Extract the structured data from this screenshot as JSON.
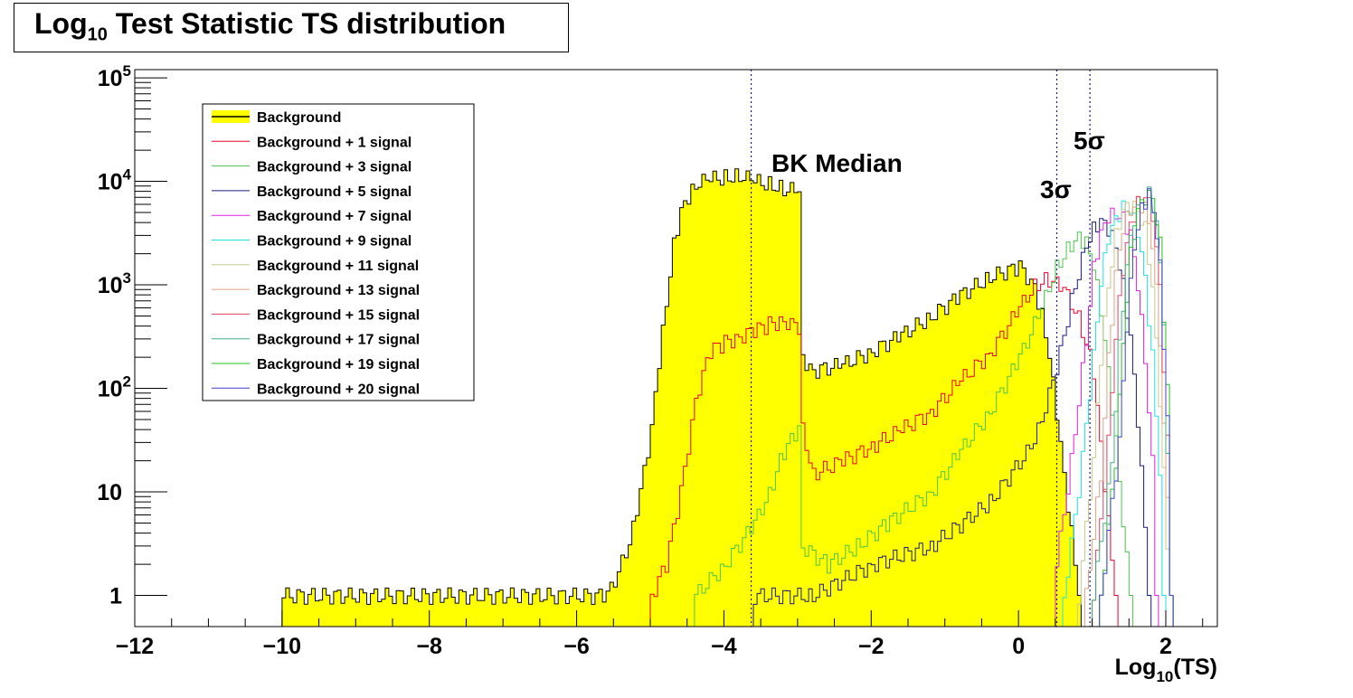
{
  "chart_data": {
    "type": "histogram",
    "title": {
      "main": "Log",
      "sub": "10",
      "rest": " Test Statistic TS distribution"
    },
    "xlabel": {
      "main": "Log",
      "sub": "10",
      "rest": "(TS)"
    },
    "ylabel": "",
    "xlim": [
      -12,
      2.7
    ],
    "ylim": [
      0.5,
      120000
    ],
    "y_scale": "log",
    "x_ticks": [
      {
        "value": -12,
        "label": "−12"
      },
      {
        "value": -10,
        "label": "−10"
      },
      {
        "value": -8,
        "label": "−8"
      },
      {
        "value": -6,
        "label": "−6"
      },
      {
        "value": -4,
        "label": "−4"
      },
      {
        "value": -2,
        "label": "−2"
      },
      {
        "value": 0,
        "label": "0"
      },
      {
        "value": 2,
        "label": "2"
      }
    ],
    "y_ticks": [
      {
        "value": 1,
        "label": "1"
      },
      {
        "value": 10,
        "label": "10"
      },
      {
        "value": 100,
        "label": "10",
        "exp": "2"
      },
      {
        "value": 1000,
        "label": "10",
        "exp": "3"
      },
      {
        "value": 10000,
        "label": "10",
        "exp": "4"
      },
      {
        "value": 100000,
        "label": "10",
        "exp": "5"
      }
    ],
    "legend_position": "top-left",
    "series": [
      {
        "name": "Background",
        "color": "#000000",
        "fill": "#ffff00",
        "filled": true,
        "points": [
          [
            -10.0,
            1
          ],
          [
            -5.6,
            1
          ],
          [
            -5.3,
            3
          ],
          [
            -5.15,
            10
          ],
          [
            -5.0,
            40
          ],
          [
            -4.9,
            180
          ],
          [
            -4.8,
            700
          ],
          [
            -4.7,
            2500
          ],
          [
            -4.6,
            5000
          ],
          [
            -4.5,
            7000
          ],
          [
            -4.4,
            9500
          ],
          [
            -4.2,
            10500
          ],
          [
            -4.0,
            11000
          ],
          [
            -3.8,
            11500
          ],
          [
            -3.6,
            10000
          ],
          [
            -3.4,
            9500
          ],
          [
            -3.2,
            8500
          ],
          [
            -3.0,
            8000
          ],
          [
            -2.95,
            200
          ],
          [
            -2.8,
            150
          ],
          [
            -2.4,
            170
          ],
          [
            -2.0,
            230
          ],
          [
            -1.6,
            330
          ],
          [
            -1.2,
            500
          ],
          [
            -0.8,
            800
          ],
          [
            -0.4,
            1200
          ],
          [
            0.0,
            1500
          ],
          [
            0.2,
            1000
          ],
          [
            0.3,
            500
          ],
          [
            0.4,
            200
          ],
          [
            0.5,
            60
          ],
          [
            0.6,
            15
          ],
          [
            0.7,
            4
          ],
          [
            0.8,
            1
          ]
        ]
      },
      {
        "name": "Background + 1 signal",
        "color": "#e8002a",
        "points": [
          [
            -5.0,
            1
          ],
          [
            -4.8,
            2
          ],
          [
            -4.6,
            10
          ],
          [
            -4.4,
            80
          ],
          [
            -4.2,
            230
          ],
          [
            -4.0,
            280
          ],
          [
            -3.8,
            320
          ],
          [
            -3.6,
            360
          ],
          [
            -3.4,
            420
          ],
          [
            -3.2,
            460
          ],
          [
            -3.0,
            380
          ],
          [
            -2.95,
            40
          ],
          [
            -2.8,
            15
          ],
          [
            -2.4,
            20
          ],
          [
            -2.0,
            28
          ],
          [
            -1.6,
            40
          ],
          [
            -1.2,
            60
          ],
          [
            -0.8,
            120
          ],
          [
            -0.4,
            220
          ],
          [
            0.0,
            600
          ],
          [
            0.2,
            1000
          ],
          [
            0.4,
            1150
          ],
          [
            0.6,
            900
          ],
          [
            0.8,
            500
          ],
          [
            1.0,
            150
          ],
          [
            1.1,
            30
          ],
          [
            1.2,
            5
          ],
          [
            1.3,
            1
          ]
        ]
      },
      {
        "name": "Background + 3 signal",
        "color": "#4bc44b",
        "points": [
          [
            -4.4,
            1
          ],
          [
            -4.0,
            2
          ],
          [
            -3.6,
            5
          ],
          [
            -3.4,
            10
          ],
          [
            -3.2,
            25
          ],
          [
            -3.0,
            40
          ],
          [
            -2.95,
            3
          ],
          [
            -2.6,
            2
          ],
          [
            -2.2,
            3
          ],
          [
            -1.8,
            5
          ],
          [
            -1.2,
            10
          ],
          [
            -0.8,
            25
          ],
          [
            -0.4,
            60
          ],
          [
            0.0,
            200
          ],
          [
            0.3,
            600
          ],
          [
            0.5,
            1500
          ],
          [
            0.7,
            2500
          ],
          [
            0.8,
            3000
          ],
          [
            0.9,
            2500
          ],
          [
            1.0,
            1500
          ],
          [
            1.1,
            600
          ],
          [
            1.2,
            150
          ],
          [
            1.3,
            30
          ],
          [
            1.4,
            5
          ],
          [
            1.5,
            1
          ]
        ]
      },
      {
        "name": "Background + 5 signal",
        "color": "#1a1a7a",
        "points": [
          [
            -3.6,
            1
          ],
          [
            -2.8,
            1
          ],
          [
            -2.0,
            2
          ],
          [
            -1.2,
            3
          ],
          [
            -0.4,
            8
          ],
          [
            0.2,
            30
          ],
          [
            0.5,
            150
          ],
          [
            0.7,
            700
          ],
          [
            0.9,
            2500
          ],
          [
            1.0,
            3500
          ],
          [
            1.1,
            4000
          ],
          [
            1.2,
            3500
          ],
          [
            1.3,
            2500
          ],
          [
            1.4,
            1000
          ],
          [
            1.5,
            300
          ],
          [
            1.6,
            50
          ],
          [
            1.7,
            5
          ],
          [
            1.75,
            1
          ]
        ]
      },
      {
        "name": "Background + 7 signal",
        "color": "#e020e0",
        "points": [
          [
            0.5,
            2
          ],
          [
            0.7,
            20
          ],
          [
            0.9,
            300
          ],
          [
            1.0,
            1500
          ],
          [
            1.1,
            3000
          ],
          [
            1.2,
            4500
          ],
          [
            1.3,
            5000
          ],
          [
            1.4,
            4500
          ],
          [
            1.5,
            3000
          ],
          [
            1.6,
            1000
          ],
          [
            1.7,
            200
          ],
          [
            1.8,
            20
          ],
          [
            1.85,
            1
          ]
        ]
      },
      {
        "name": "Background + 9 signal",
        "color": "#20e0e0",
        "points": [
          [
            0.6,
            1
          ],
          [
            0.8,
            10
          ],
          [
            1.0,
            200
          ],
          [
            1.1,
            1000
          ],
          [
            1.2,
            3000
          ],
          [
            1.3,
            4500
          ],
          [
            1.4,
            5500
          ],
          [
            1.5,
            5000
          ],
          [
            1.6,
            3500
          ],
          [
            1.7,
            1200
          ],
          [
            1.8,
            200
          ],
          [
            1.9,
            15
          ],
          [
            1.95,
            1
          ]
        ]
      },
      {
        "name": "Background + 11 signal",
        "color": "#c8c88a",
        "points": [
          [
            0.8,
            1
          ],
          [
            1.0,
            20
          ],
          [
            1.1,
            200
          ],
          [
            1.2,
            1000
          ],
          [
            1.3,
            3000
          ],
          [
            1.4,
            5000
          ],
          [
            1.5,
            6000
          ],
          [
            1.6,
            5500
          ],
          [
            1.7,
            3500
          ],
          [
            1.8,
            900
          ],
          [
            1.9,
            80
          ],
          [
            2.0,
            3
          ],
          [
            2.05,
            1
          ]
        ]
      },
      {
        "name": "Background + 13 signal",
        "color": "#e0a080",
        "points": [
          [
            0.9,
            1
          ],
          [
            1.1,
            15
          ],
          [
            1.2,
            200
          ],
          [
            1.3,
            1200
          ],
          [
            1.4,
            3500
          ],
          [
            1.5,
            5500
          ],
          [
            1.6,
            6500
          ],
          [
            1.7,
            5500
          ],
          [
            1.8,
            2500
          ],
          [
            1.9,
            300
          ],
          [
            2.0,
            8
          ],
          [
            2.05,
            1
          ]
        ]
      },
      {
        "name": "Background + 15 signal",
        "color": "#e04060",
        "points": [
          [
            1.0,
            1
          ],
          [
            1.2,
            30
          ],
          [
            1.3,
            300
          ],
          [
            1.4,
            1500
          ],
          [
            1.5,
            4000
          ],
          [
            1.6,
            6000
          ],
          [
            1.7,
            7000
          ],
          [
            1.8,
            5000
          ],
          [
            1.9,
            1000
          ],
          [
            2.0,
            30
          ],
          [
            2.05,
            1
          ]
        ]
      },
      {
        "name": "Background + 17 signal",
        "color": "#40b080",
        "points": [
          [
            1.0,
            1
          ],
          [
            1.25,
            20
          ],
          [
            1.35,
            250
          ],
          [
            1.45,
            1500
          ],
          [
            1.55,
            4500
          ],
          [
            1.65,
            6500
          ],
          [
            1.75,
            7500
          ],
          [
            1.85,
            4000
          ],
          [
            1.95,
            500
          ],
          [
            2.0,
            20
          ],
          [
            2.05,
            1
          ]
        ]
      },
      {
        "name": "Background + 19 signal",
        "color": "#20c020",
        "points": [
          [
            1.1,
            1
          ],
          [
            1.3,
            20
          ],
          [
            1.4,
            300
          ],
          [
            1.5,
            2000
          ],
          [
            1.6,
            5000
          ],
          [
            1.7,
            7000
          ],
          [
            1.8,
            7500
          ],
          [
            1.9,
            2500
          ],
          [
            2.0,
            100
          ],
          [
            2.05,
            1
          ]
        ]
      },
      {
        "name": "Background + 20 signal",
        "color": "#4040d0",
        "points": [
          [
            1.1,
            1
          ],
          [
            1.35,
            30
          ],
          [
            1.45,
            400
          ],
          [
            1.55,
            2500
          ],
          [
            1.65,
            5500
          ],
          [
            1.75,
            7500
          ],
          [
            1.82,
            6000
          ],
          [
            1.9,
            1500
          ],
          [
            2.0,
            50
          ],
          [
            2.05,
            1
          ]
        ]
      }
    ],
    "vlines": [
      {
        "x": -3.63,
        "color": "#1a1a7a",
        "style": "dotted"
      },
      {
        "x": 0.52,
        "color": "#1a1a7a",
        "style": "dotted"
      },
      {
        "x": 0.97,
        "color": "#1a1a7a",
        "style": "dotted"
      }
    ],
    "annotations": [
      {
        "text": "BK Median"
      },
      {
        "text": "3σ"
      },
      {
        "text": "5σ"
      }
    ]
  }
}
